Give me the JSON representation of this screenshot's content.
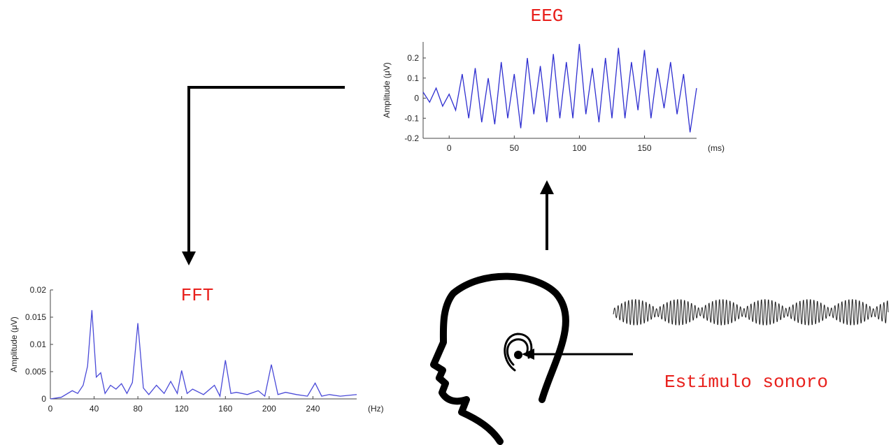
{
  "eeg": {
    "type": "line",
    "title": "EEG",
    "y_label": "Amplitude (μV)",
    "x_unit": "(ms)",
    "xlim": [
      -20,
      190
    ],
    "ylim": [
      -0.2,
      0.28
    ],
    "xticks": [
      0,
      50,
      100,
      150
    ],
    "yticks": [
      -0.2,
      -0.1,
      0,
      0.1,
      0.2
    ],
    "color": "#2f2fd0",
    "x": [
      -20,
      -15,
      -10,
      -5,
      0,
      5,
      10,
      15,
      20,
      25,
      30,
      35,
      40,
      45,
      50,
      55,
      60,
      65,
      70,
      75,
      80,
      85,
      90,
      95,
      100,
      105,
      110,
      115,
      120,
      125,
      130,
      135,
      140,
      145,
      150,
      155,
      160,
      165,
      170,
      175,
      180,
      185,
      190
    ],
    "values": [
      0.03,
      -0.02,
      0.05,
      -0.04,
      0.02,
      -0.06,
      0.12,
      -0.1,
      0.15,
      -0.12,
      0.1,
      -0.13,
      0.18,
      -0.1,
      0.12,
      -0.15,
      0.2,
      -0.08,
      0.16,
      -0.12,
      0.22,
      -0.1,
      0.18,
      -0.1,
      0.27,
      -0.08,
      0.15,
      -0.12,
      0.2,
      -0.1,
      0.25,
      -0.1,
      0.18,
      -0.06,
      0.24,
      -0.1,
      0.15,
      -0.05,
      0.18,
      -0.08,
      0.12,
      -0.17,
      0.05
    ]
  },
  "fft": {
    "type": "line",
    "title": "FFT",
    "y_label": "Amplitude (μV)",
    "x_unit": "(Hz)",
    "xlim": [
      0,
      280
    ],
    "ylim": [
      0,
      0.02
    ],
    "xticks": [
      0,
      40,
      80,
      120,
      160,
      200,
      240
    ],
    "yticks": [
      0,
      0.005,
      0.01,
      0.015,
      0.02
    ],
    "color": "#4a4ad8",
    "x": [
      0,
      10,
      20,
      25,
      30,
      34,
      38,
      42,
      46,
      50,
      55,
      60,
      65,
      70,
      75,
      80,
      85,
      90,
      97,
      104,
      110,
      116,
      120,
      125,
      130,
      140,
      150,
      155,
      160,
      165,
      170,
      180,
      190,
      196,
      202,
      208,
      215,
      225,
      235,
      242,
      248,
      255,
      265,
      280
    ],
    "values": [
      0,
      0.0003,
      0.0015,
      0.001,
      0.0025,
      0.006,
      0.0163,
      0.004,
      0.0048,
      0.001,
      0.0025,
      0.0018,
      0.0028,
      0.001,
      0.003,
      0.0139,
      0.002,
      0.0008,
      0.0025,
      0.001,
      0.0032,
      0.001,
      0.0052,
      0.001,
      0.0018,
      0.0008,
      0.0025,
      0.0005,
      0.0071,
      0.001,
      0.0012,
      0.0008,
      0.0015,
      0.0005,
      0.0063,
      0.0008,
      0.0012,
      0.0008,
      0.0005,
      0.0029,
      0.0005,
      0.0008,
      0.0005,
      0.0008
    ]
  },
  "stimulus_label": "Estímulo sonoro"
}
